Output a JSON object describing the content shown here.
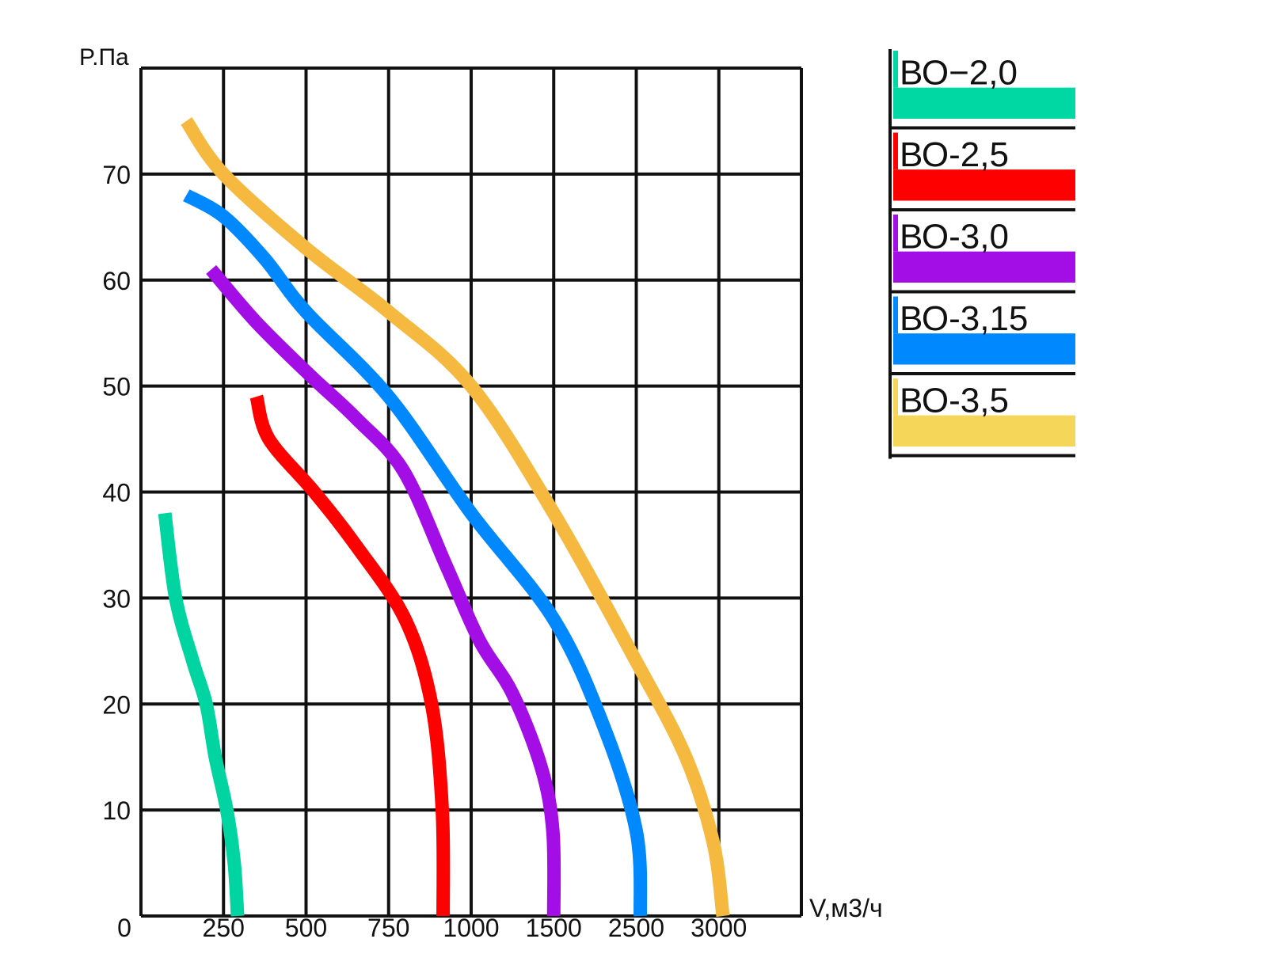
{
  "chart_data": {
    "type": "line",
    "title": "",
    "ylabel": "P.Па",
    "xlabel": "V,м3/ч",
    "x_origin_label": "0",
    "x_ticks": [
      "250",
      "500",
      "750",
      "1000",
      "1500",
      "2500",
      "3000"
    ],
    "y_ticks": [
      "10",
      "20",
      "30",
      "40",
      "50",
      "60",
      "70"
    ],
    "ylim": [
      0,
      80
    ],
    "x_slot_count": 8,
    "grid": true,
    "legend_position": "top-right",
    "series": [
      {
        "name": "ВО−2,0",
        "color": "#00d4a0",
        "points": [
          [
            0.29,
            38
          ],
          [
            0.42,
            30
          ],
          [
            0.63,
            24
          ],
          [
            0.79,
            20
          ],
          [
            0.9,
            15
          ],
          [
            1.04,
            10
          ],
          [
            1.13,
            5
          ],
          [
            1.17,
            0
          ]
        ]
      },
      {
        "name": "ВО-2,5",
        "color": "#ff0000",
        "points": [
          [
            1.4,
            49
          ],
          [
            1.55,
            45
          ],
          [
            2.1,
            40
          ],
          [
            2.6,
            35
          ],
          [
            3.2,
            28
          ],
          [
            3.52,
            20
          ],
          [
            3.65,
            10
          ],
          [
            3.66,
            0
          ]
        ]
      },
      {
        "name": "ВО-3,0",
        "color": "#a40ee6",
        "points": [
          [
            0.85,
            61
          ],
          [
            1.4,
            56
          ],
          [
            2.05,
            51
          ],
          [
            2.6,
            47
          ],
          [
            3.18,
            42
          ],
          [
            3.7,
            33
          ],
          [
            4.1,
            26
          ],
          [
            4.5,
            21
          ],
          [
            4.85,
            14
          ],
          [
            4.99,
            8
          ],
          [
            5.0,
            0
          ]
        ]
      },
      {
        "name": "ВО-3,15",
        "color": "#0088ff",
        "points": [
          [
            0.55,
            68
          ],
          [
            1.0,
            66
          ],
          [
            1.5,
            62
          ],
          [
            2.0,
            57
          ],
          [
            3.0,
            49
          ],
          [
            4.0,
            38
          ],
          [
            5.0,
            28
          ],
          [
            5.6,
            18
          ],
          [
            6.0,
            8
          ],
          [
            6.05,
            0
          ]
        ]
      },
      {
        "name": "ВО-3,5",
        "color": "#f5b940",
        "points": [
          [
            0.55,
            75
          ],
          [
            1.0,
            70
          ],
          [
            2.0,
            63
          ],
          [
            3.0,
            57
          ],
          [
            4.0,
            50
          ],
          [
            5.0,
            38
          ],
          [
            6.0,
            24
          ],
          [
            6.6,
            15
          ],
          [
            6.93,
            7
          ],
          [
            7.05,
            0
          ]
        ]
      }
    ],
    "legend_swatch_colors": [
      "#00d8a4",
      "#ff0000",
      "#a40ee6",
      "#0088ff",
      "#f5d658"
    ]
  }
}
